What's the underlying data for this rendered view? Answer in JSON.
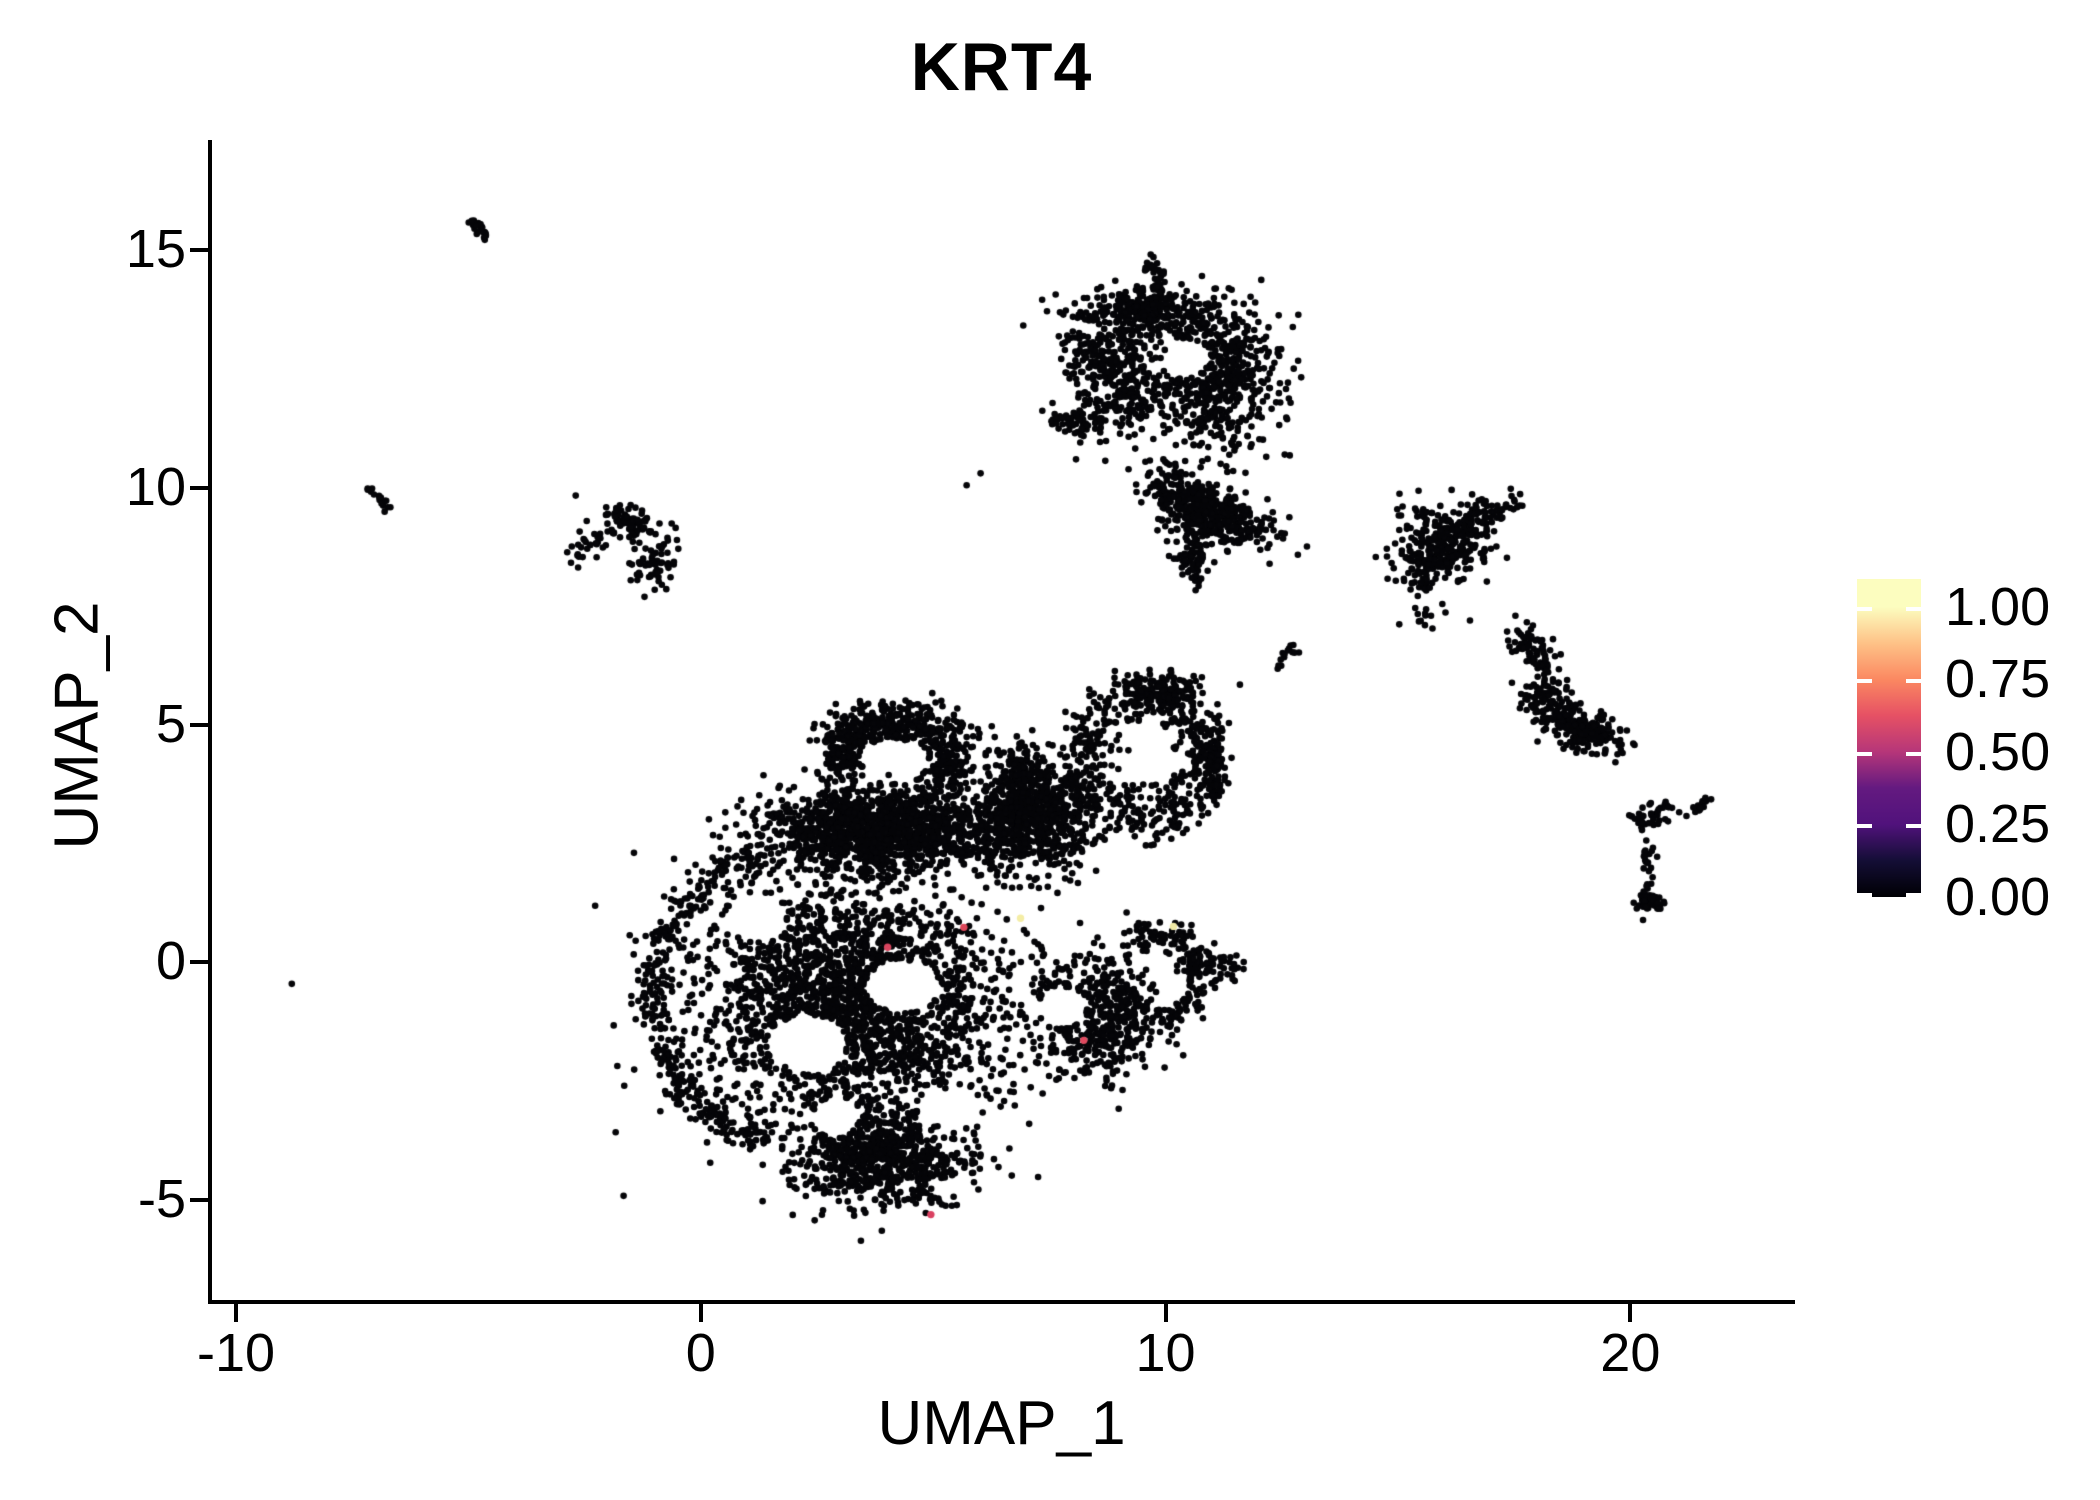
{
  "title": "KRT4",
  "axes": {
    "x": {
      "label": "UMAP_1",
      "tick_labels": [
        "-10",
        "0",
        "10",
        "20"
      ]
    },
    "y": {
      "label": "UMAP_2",
      "tick_labels": [
        "15",
        "10",
        "5",
        "0",
        "-5"
      ]
    }
  },
  "legend": {
    "labels": [
      "1.00",
      "0.75",
      "0.50",
      "0.25",
      "0.00"
    ],
    "tick_values": [
      1.0,
      0.75,
      0.5,
      0.25,
      0.0
    ],
    "gradient": [
      {
        "v": 0.0,
        "color": "#000004"
      },
      {
        "v": 0.125,
        "color": "#140E36"
      },
      {
        "v": 0.25,
        "color": "#51127C"
      },
      {
        "v": 0.375,
        "color": "#641A80"
      },
      {
        "v": 0.5,
        "color": "#B63679"
      },
      {
        "v": 0.625,
        "color": "#E65164"
      },
      {
        "v": 0.75,
        "color": "#FB8861"
      },
      {
        "v": 0.875,
        "color": "#FEC287"
      },
      {
        "v": 1.0,
        "color": "#FCFDBF"
      }
    ]
  },
  "chart_data": {
    "type": "scatter",
    "title": "KRT4",
    "xlabel": "UMAP_1",
    "ylabel": "UMAP_2",
    "xlim": [
      -10.56,
      23.5
    ],
    "ylim": [
      -7.15,
      17.32
    ],
    "x_ticks": [
      -10,
      0,
      10,
      20
    ],
    "y_ticks": [
      15,
      10,
      5,
      0,
      -5
    ],
    "grid": false,
    "legend_position": "right",
    "point_radius_px": 3.3,
    "zero_color": "#050508",
    "description": "UMAP feature plot of KRT4 expression; nearly all cells have zero expression (black); a handful of cells in the central cluster show non-zero expression (red/yellow).",
    "clusters": {
      "blobs": [
        {
          "cx": 4.1,
          "cy": 4.95,
          "rx": 1.55,
          "ry": 0.5,
          "rot": 0,
          "n": 330
        },
        {
          "cx": 3.05,
          "cy": 4.35,
          "rx": 0.5,
          "ry": 0.65,
          "rot": 0,
          "n": 130
        },
        {
          "cx": 5.25,
          "cy": 4.2,
          "rx": 0.55,
          "ry": 0.75,
          "rot": 0,
          "n": 150
        },
        {
          "cx": 3.9,
          "cy": 2.8,
          "rx": 2.45,
          "ry": 0.85,
          "rot": 0,
          "n": 1450
        },
        {
          "cx": 7.2,
          "cy": 2.9,
          "rx": 1.3,
          "ry": 1.1,
          "rot": 0,
          "n": 480
        },
        {
          "cx": 3.3,
          "cy": -0.8,
          "rx": 3.3,
          "ry": 2.55,
          "rot": 0,
          "n": 2500
        },
        {
          "cx": 3.9,
          "cy": -4.15,
          "rx": 1.75,
          "ry": 1.0,
          "rot": 0,
          "n": 750
        },
        {
          "cx": 8.55,
          "cy": -1.1,
          "rx": 1.35,
          "ry": 1.25,
          "rot": 0,
          "n": 520
        },
        {
          "cx": 6.85,
          "cy": 3.6,
          "rx": 0.9,
          "ry": 0.95,
          "rot": 0,
          "n": 280
        },
        {
          "cx": 9.9,
          "cy": 5.7,
          "rx": 0.95,
          "ry": 0.45,
          "rot": 0,
          "n": 140
        },
        {
          "cx": 11.0,
          "cy": 4.3,
          "rx": 0.3,
          "ry": 1.0,
          "rot": 0,
          "n": 110
        },
        {
          "cx": 9.4,
          "cy": 13.75,
          "rx": 1.35,
          "ry": 0.5,
          "rot": 0,
          "n": 280
        },
        {
          "cx": 11.05,
          "cy": 12.3,
          "rx": 1.25,
          "ry": 1.65,
          "rot": 0,
          "n": 620
        },
        {
          "cx": 8.95,
          "cy": 12.2,
          "rx": 1.05,
          "ry": 1.15,
          "rot": 0,
          "n": 300
        },
        {
          "cx": 10.9,
          "cy": 9.5,
          "rx": 1.4,
          "ry": 0.55,
          "rot": -25,
          "n": 430
        },
        {
          "cx": 8.3,
          "cy": 13.0,
          "rx": 0.7,
          "ry": 0.55,
          "rot": 0,
          "n": 45
        },
        {
          "cx": -1.55,
          "cy": 9.25,
          "rx": 0.8,
          "ry": 0.4,
          "rot": -15,
          "n": 80
        },
        {
          "cx": -0.98,
          "cy": 8.4,
          "rx": 0.5,
          "ry": 0.45,
          "rot": 0,
          "n": 60
        },
        {
          "cx": 16.0,
          "cy": 8.85,
          "rx": 0.95,
          "ry": 0.8,
          "rot": 0,
          "n": 300
        },
        {
          "cx": 15.6,
          "cy": 7.35,
          "rx": 0.5,
          "ry": 0.35,
          "rot": 0,
          "n": 12
        },
        {
          "cx": 18.1,
          "cy": 5.55,
          "rx": 0.5,
          "ry": 0.55,
          "rot": 0,
          "n": 90
        },
        {
          "cx": 18.95,
          "cy": 4.95,
          "rx": 0.8,
          "ry": 0.45,
          "rot": -18,
          "n": 210
        },
        {
          "cx": 20.42,
          "cy": 1.3,
          "rx": 0.28,
          "ry": 0.28,
          "rot": 0,
          "n": 45
        }
      ],
      "rings": [
        {
          "cx": 1.9,
          "cy": -0.75,
          "r": 2.95,
          "w": 0.45,
          "a0": 100,
          "a1": 262,
          "n": 380
        },
        {
          "cx": 9.75,
          "cy": -0.35,
          "r": 0.95,
          "w": 0.33,
          "a0": -80,
          "a1": 120,
          "n": 150
        },
        {
          "cx": 9.55,
          "cy": 4.3,
          "r": 1.3,
          "w": 0.6,
          "a0": 0,
          "a1": 360,
          "n": 430
        }
      ],
      "streaks": [
        {
          "x1": 10.7,
          "y1": 0.1,
          "x2": 11.5,
          "y2": -0.2,
          "j": 0.15,
          "n": 50
        },
        {
          "x1": 7.5,
          "y1": 3.1,
          "x2": 8.4,
          "y2": 3.8,
          "j": 0.3,
          "n": 70
        },
        {
          "x1": 10.55,
          "y1": 9.2,
          "x2": 10.65,
          "y2": 8.1,
          "j": 0.18,
          "n": 80
        },
        {
          "x1": 9.7,
          "y1": 14.75,
          "x2": 9.95,
          "y2": 14.1,
          "j": 0.1,
          "n": 40
        },
        {
          "x1": 7.55,
          "y1": 11.55,
          "x2": 8.45,
          "y2": 11.25,
          "j": 0.12,
          "n": 55
        },
        {
          "x1": -2.8,
          "y1": 8.55,
          "x2": -2.05,
          "y2": 9.0,
          "j": 0.15,
          "n": 28
        },
        {
          "x1": -4.9,
          "y1": 15.6,
          "x2": -4.6,
          "y2": 15.3,
          "j": 0.06,
          "n": 22
        },
        {
          "x1": -7.1,
          "y1": 9.95,
          "x2": -6.75,
          "y2": 9.6,
          "j": 0.06,
          "n": 16
        },
        {
          "x1": 16.5,
          "y1": 9.3,
          "x2": 17.6,
          "y2": 9.75,
          "j": 0.13,
          "n": 55
        },
        {
          "x1": 15.0,
          "y1": 7.85,
          "x2": 15.9,
          "y2": 8.45,
          "j": 0.28,
          "n": 40
        },
        {
          "x1": 17.6,
          "y1": 6.9,
          "x2": 18.25,
          "y2": 6.25,
          "j": 0.16,
          "n": 70
        },
        {
          "x1": 20.0,
          "y1": 2.95,
          "x2": 20.95,
          "y2": 3.25,
          "j": 0.12,
          "n": 40
        },
        {
          "x1": 20.4,
          "y1": 2.7,
          "x2": 20.35,
          "y2": 1.6,
          "j": 0.07,
          "n": 20
        },
        {
          "x1": 21.35,
          "y1": 3.15,
          "x2": 21.72,
          "y2": 3.5,
          "j": 0.05,
          "n": 16
        },
        {
          "x1": 12.3,
          "y1": 6.3,
          "x2": 12.9,
          "y2": 6.65,
          "j": 0.06,
          "n": 14
        }
      ],
      "dots": [
        [
          -8.8,
          -0.45
        ],
        [
          5.72,
          10.05
        ],
        [
          6.02,
          10.3
        ],
        [
          11.6,
          5.85
        ],
        [
          19.45,
          4.4
        ],
        [
          16.55,
          7.2
        ]
      ],
      "holes": [
        [
          2.3,
          -1.7,
          0.85,
          0.6
        ],
        [
          4.35,
          -0.5,
          0.8,
          0.55
        ],
        [
          7.8,
          -0.95,
          0.5,
          0.42
        ],
        [
          1.25,
          0.95,
          0.6,
          0.5
        ],
        [
          5.3,
          -3.05,
          0.65,
          0.4
        ],
        [
          10.45,
          12.75,
          0.5,
          0.38
        ],
        [
          4.15,
          4.35,
          0.75,
          0.35
        ],
        [
          2.9,
          -3.3,
          0.5,
          0.35
        ]
      ]
    },
    "highlight_points": [
      {
        "x": 4.02,
        "y": 0.32,
        "color": "#D8455F"
      },
      {
        "x": 5.66,
        "y": 0.74,
        "color": "#DC4659"
      },
      {
        "x": 6.88,
        "y": 0.93,
        "color": "#F4EDA5"
      },
      {
        "x": 10.17,
        "y": 0.76,
        "color": "#EFE8A4"
      },
      {
        "x": 8.24,
        "y": -1.64,
        "color": "#E04A5F"
      },
      {
        "x": 4.95,
        "y": -5.31,
        "color": "#DA4161"
      }
    ]
  }
}
